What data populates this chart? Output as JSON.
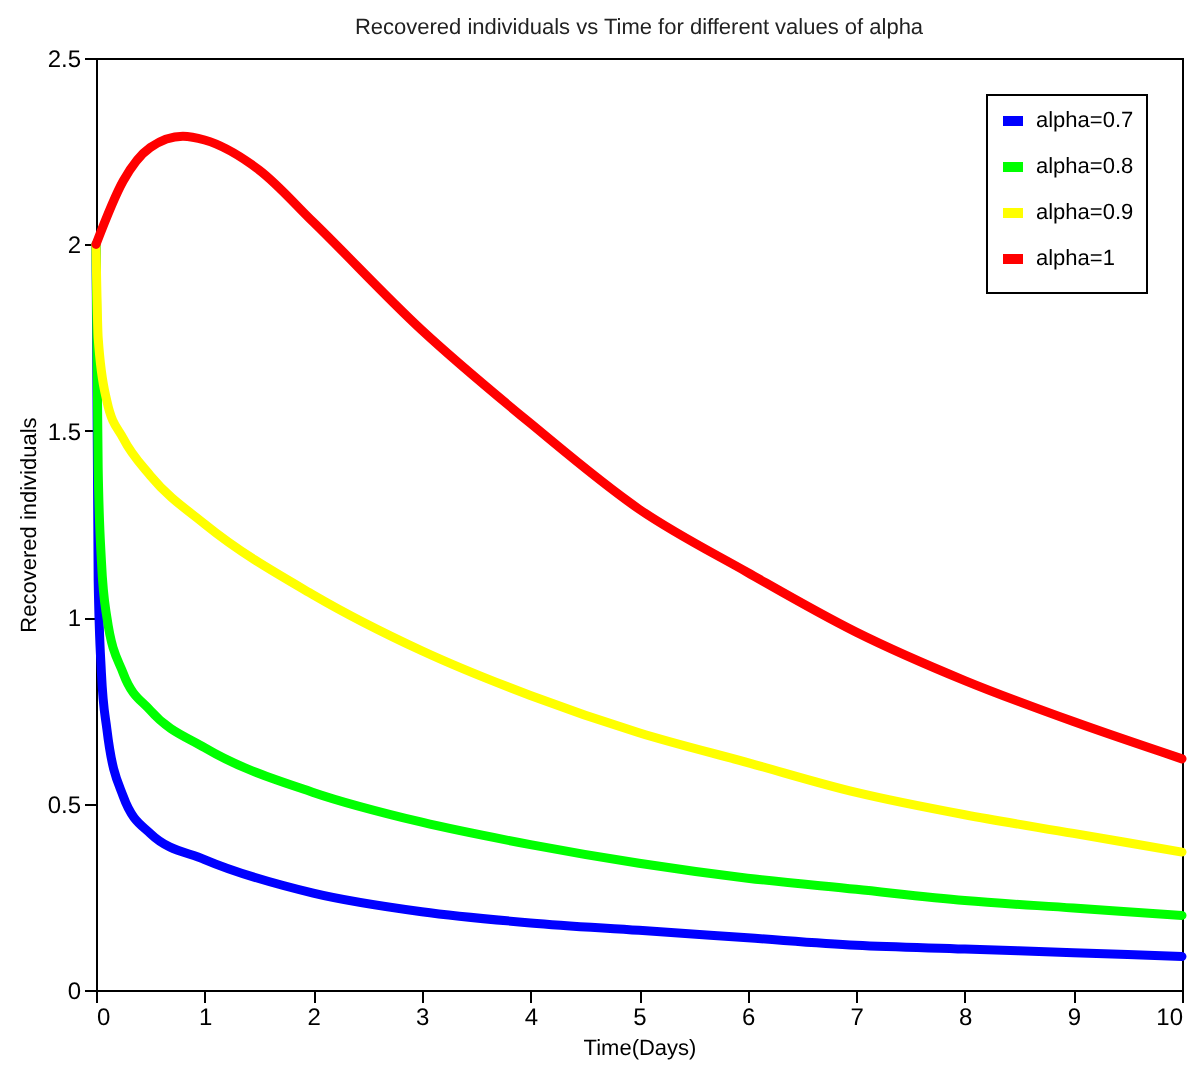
{
  "chart_data": {
    "type": "line",
    "title": "Recovered individuals vs Time for different values of alpha",
    "xlabel": "Time(Days)",
    "ylabel": "Recovered individuals",
    "xlim": [
      0,
      10
    ],
    "xticks": [
      0,
      1,
      2,
      3,
      4,
      5,
      6,
      7,
      8,
      9,
      10
    ],
    "ylim": [
      0,
      2.5
    ],
    "yticks": [
      0,
      0.5,
      1,
      1.5,
      2,
      2.5
    ],
    "grid": false,
    "legend": "top right",
    "line_style": "solid",
    "series": [
      {
        "name": "alpha=0.7",
        "color": "#0000ff",
        "x": [
          0,
          0.02,
          0.05,
          0.1,
          0.25,
          0.5,
          1,
          2,
          3,
          4,
          5,
          6,
          7,
          8,
          9,
          10
        ],
        "values": [
          2.0,
          1.1,
          0.85,
          0.7,
          0.52,
          0.42,
          0.35,
          0.26,
          0.21,
          0.18,
          0.16,
          0.14,
          0.12,
          0.11,
          0.1,
          0.09
        ]
      },
      {
        "name": "alpha=0.8",
        "color": "#00ff00",
        "x": [
          0,
          0.02,
          0.05,
          0.1,
          0.25,
          0.5,
          1,
          2,
          3,
          4,
          5,
          6,
          7,
          8,
          9,
          10
        ],
        "values": [
          2.0,
          1.4,
          1.15,
          1.0,
          0.85,
          0.75,
          0.65,
          0.53,
          0.45,
          0.39,
          0.34,
          0.3,
          0.27,
          0.24,
          0.22,
          0.2
        ]
      },
      {
        "name": "alpha=0.9",
        "color": "#ffff00",
        "x": [
          0,
          0.02,
          0.1,
          0.25,
          0.5,
          1,
          2,
          3,
          4,
          5,
          6,
          7,
          8,
          9,
          10
        ],
        "values": [
          2.0,
          1.75,
          1.58,
          1.48,
          1.38,
          1.25,
          1.06,
          0.91,
          0.79,
          0.69,
          0.61,
          0.53,
          0.47,
          0.42,
          0.37
        ]
      },
      {
        "name": "alpha=1",
        "color": "#ff0000",
        "x": [
          0,
          0.25,
          0.5,
          0.8,
          1,
          1.5,
          2,
          3,
          4,
          5,
          6,
          7,
          8,
          9,
          10
        ],
        "values": [
          2.0,
          2.17,
          2.26,
          2.29,
          2.28,
          2.2,
          2.06,
          1.77,
          1.52,
          1.29,
          1.12,
          0.96,
          0.83,
          0.72,
          0.62
        ]
      }
    ]
  }
}
